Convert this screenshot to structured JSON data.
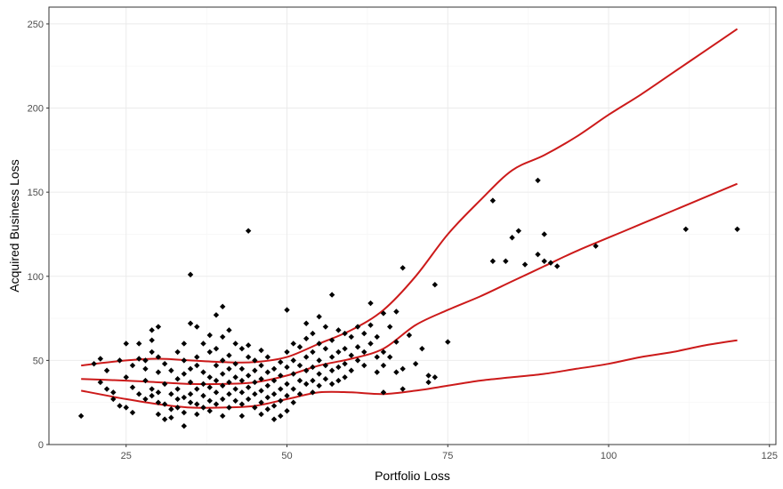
{
  "chart_data": {
    "type": "scatter",
    "title": "",
    "xlabel": "Portfolio Loss",
    "ylabel": "Acquired Business Loss",
    "xlim": [
      13,
      126
    ],
    "ylim": [
      0,
      260
    ],
    "x_ticks": [
      25,
      50,
      75,
      100,
      125
    ],
    "y_ticks": [
      0,
      50,
      100,
      150,
      200,
      250
    ],
    "grid": true,
    "point_color": "#000000",
    "curve_color": "#cc1a1a",
    "points": [
      [
        18,
        17
      ],
      [
        20,
        48
      ],
      [
        21,
        51
      ],
      [
        21,
        37
      ],
      [
        22,
        44
      ],
      [
        22,
        33
      ],
      [
        23,
        27
      ],
      [
        23,
        31
      ],
      [
        24,
        23
      ],
      [
        24,
        50
      ],
      [
        25,
        22
      ],
      [
        25,
        40
      ],
      [
        25,
        60
      ],
      [
        26,
        34
      ],
      [
        26,
        19
      ],
      [
        26,
        47
      ],
      [
        27,
        30
      ],
      [
        27,
        51
      ],
      [
        27,
        60
      ],
      [
        28,
        45
      ],
      [
        28,
        38
      ],
      [
        28,
        27
      ],
      [
        28,
        50
      ],
      [
        29,
        62
      ],
      [
        29,
        55
      ],
      [
        29,
        33
      ],
      [
        29,
        29
      ],
      [
        29,
        68
      ],
      [
        30,
        70
      ],
      [
        30,
        52
      ],
      [
        30,
        43
      ],
      [
        30,
        31
      ],
      [
        30,
        25
      ],
      [
        30,
        18
      ],
      [
        31,
        15
      ],
      [
        31,
        24
      ],
      [
        31,
        36
      ],
      [
        31,
        48
      ],
      [
        32,
        44
      ],
      [
        32,
        30
      ],
      [
        32,
        21
      ],
      [
        32,
        16
      ],
      [
        33,
        55
      ],
      [
        33,
        39
      ],
      [
        33,
        33
      ],
      [
        33,
        27
      ],
      [
        33,
        22
      ],
      [
        34,
        60
      ],
      [
        34,
        50
      ],
      [
        34,
        42
      ],
      [
        34,
        28
      ],
      [
        34,
        19
      ],
      [
        34,
        11
      ],
      [
        35,
        101
      ],
      [
        35,
        72
      ],
      [
        35,
        45
      ],
      [
        35,
        37
      ],
      [
        35,
        30
      ],
      [
        35,
        25
      ],
      [
        36,
        70
      ],
      [
        36,
        52
      ],
      [
        36,
        47
      ],
      [
        36,
        33
      ],
      [
        36,
        24
      ],
      [
        36,
        18
      ],
      [
        37,
        60
      ],
      [
        37,
        43
      ],
      [
        37,
        36
      ],
      [
        37,
        29
      ],
      [
        37,
        22
      ],
      [
        38,
        65
      ],
      [
        38,
        55
      ],
      [
        38,
        40
      ],
      [
        38,
        34
      ],
      [
        38,
        26
      ],
      [
        38,
        20
      ],
      [
        39,
        77
      ],
      [
        39,
        57
      ],
      [
        39,
        47
      ],
      [
        39,
        38
      ],
      [
        39,
        31
      ],
      [
        39,
        24
      ],
      [
        40,
        82
      ],
      [
        40,
        64
      ],
      [
        40,
        50
      ],
      [
        40,
        42
      ],
      [
        40,
        35
      ],
      [
        40,
        27
      ],
      [
        40,
        17
      ],
      [
        41,
        68
      ],
      [
        41,
        53
      ],
      [
        41,
        45
      ],
      [
        41,
        37
      ],
      [
        41,
        30
      ],
      [
        41,
        22
      ],
      [
        42,
        60
      ],
      [
        42,
        48
      ],
      [
        42,
        40
      ],
      [
        42,
        33
      ],
      [
        42,
        26
      ],
      [
        43,
        57
      ],
      [
        43,
        45
      ],
      [
        43,
        38
      ],
      [
        43,
        31
      ],
      [
        43,
        24
      ],
      [
        43,
        17
      ],
      [
        44,
        127
      ],
      [
        44,
        59
      ],
      [
        44,
        52
      ],
      [
        44,
        41
      ],
      [
        44,
        34
      ],
      [
        44,
        27
      ],
      [
        45,
        50
      ],
      [
        45,
        44
      ],
      [
        45,
        37
      ],
      [
        45,
        30
      ],
      [
        45,
        22
      ],
      [
        46,
        56
      ],
      [
        46,
        47
      ],
      [
        46,
        39
      ],
      [
        46,
        32
      ],
      [
        46,
        25
      ],
      [
        46,
        18
      ],
      [
        47,
        52
      ],
      [
        47,
        43
      ],
      [
        47,
        35
      ],
      [
        47,
        28
      ],
      [
        47,
        21
      ],
      [
        48,
        45
      ],
      [
        48,
        38
      ],
      [
        48,
        30
      ],
      [
        48,
        23
      ],
      [
        48,
        15
      ],
      [
        49,
        49
      ],
      [
        49,
        41
      ],
      [
        49,
        33
      ],
      [
        49,
        26
      ],
      [
        49,
        17
      ],
      [
        50,
        80
      ],
      [
        50,
        55
      ],
      [
        50,
        46
      ],
      [
        50,
        36
      ],
      [
        50,
        29
      ],
      [
        50,
        20
      ],
      [
        51,
        60
      ],
      [
        51,
        50
      ],
      [
        51,
        42
      ],
      [
        51,
        33
      ],
      [
        51,
        25
      ],
      [
        52,
        58
      ],
      [
        52,
        47
      ],
      [
        52,
        38
      ],
      [
        52,
        30
      ],
      [
        53,
        72
      ],
      [
        53,
        63
      ],
      [
        53,
        52
      ],
      [
        53,
        44
      ],
      [
        53,
        36
      ],
      [
        54,
        66
      ],
      [
        54,
        55
      ],
      [
        54,
        46
      ],
      [
        54,
        38
      ],
      [
        54,
        31
      ],
      [
        55,
        76
      ],
      [
        55,
        60
      ],
      [
        55,
        50
      ],
      [
        55,
        42
      ],
      [
        55,
        35
      ],
      [
        56,
        70
      ],
      [
        56,
        57
      ],
      [
        56,
        47
      ],
      [
        56,
        39
      ],
      [
        57,
        89
      ],
      [
        57,
        62
      ],
      [
        57,
        52
      ],
      [
        57,
        44
      ],
      [
        57,
        36
      ],
      [
        58,
        68
      ],
      [
        58,
        55
      ],
      [
        58,
        46
      ],
      [
        58,
        38
      ],
      [
        59,
        66
      ],
      [
        59,
        57
      ],
      [
        59,
        48
      ],
      [
        59,
        40
      ],
      [
        60,
        64
      ],
      [
        60,
        53
      ],
      [
        60,
        44
      ],
      [
        61,
        70
      ],
      [
        61,
        58
      ],
      [
        61,
        50
      ],
      [
        62,
        66
      ],
      [
        62,
        55
      ],
      [
        62,
        47
      ],
      [
        63,
        84
      ],
      [
        63,
        71
      ],
      [
        63,
        60
      ],
      [
        64,
        64
      ],
      [
        64,
        52
      ],
      [
        64,
        43
      ],
      [
        65,
        78
      ],
      [
        65,
        55
      ],
      [
        65,
        47
      ],
      [
        65,
        31
      ],
      [
        66,
        70
      ],
      [
        66,
        52
      ],
      [
        67,
        79
      ],
      [
        67,
        61
      ],
      [
        67,
        43
      ],
      [
        68,
        105
      ],
      [
        68,
        45
      ],
      [
        68,
        33
      ],
      [
        69,
        65
      ],
      [
        70,
        48
      ],
      [
        71,
        57
      ],
      [
        72,
        41
      ],
      [
        72,
        37
      ],
      [
        73,
        95
      ],
      [
        73,
        40
      ],
      [
        75,
        61
      ],
      [
        82,
        109
      ],
      [
        82,
        145
      ],
      [
        84,
        109
      ],
      [
        85,
        123
      ],
      [
        86,
        127
      ],
      [
        87,
        107
      ],
      [
        89,
        113
      ],
      [
        89,
        157
      ],
      [
        90,
        125
      ],
      [
        90,
        109
      ],
      [
        91,
        108
      ],
      [
        92,
        106
      ],
      [
        98,
        118
      ],
      [
        112,
        128
      ],
      [
        120,
        128
      ]
    ],
    "curves": [
      {
        "name": "upper",
        "points": [
          [
            18,
            47
          ],
          [
            25,
            50
          ],
          [
            30,
            51
          ],
          [
            35,
            50
          ],
          [
            40,
            49
          ],
          [
            45,
            49
          ],
          [
            50,
            52
          ],
          [
            55,
            60
          ],
          [
            60,
            68
          ],
          [
            65,
            80
          ],
          [
            70,
            100
          ],
          [
            75,
            125
          ],
          [
            80,
            145
          ],
          [
            85,
            163
          ],
          [
            90,
            172
          ],
          [
            95,
            183
          ],
          [
            100,
            196
          ],
          [
            105,
            208
          ],
          [
            110,
            221
          ],
          [
            115,
            234
          ],
          [
            120,
            247
          ]
        ]
      },
      {
        "name": "middle",
        "points": [
          [
            18,
            39
          ],
          [
            25,
            38
          ],
          [
            30,
            37
          ],
          [
            35,
            36
          ],
          [
            40,
            36
          ],
          [
            45,
            37
          ],
          [
            50,
            41
          ],
          [
            55,
            47
          ],
          [
            60,
            51
          ],
          [
            65,
            57
          ],
          [
            70,
            71
          ],
          [
            75,
            80
          ],
          [
            80,
            88
          ],
          [
            85,
            97
          ],
          [
            90,
            106
          ],
          [
            95,
            115
          ],
          [
            100,
            123
          ],
          [
            105,
            131
          ],
          [
            110,
            139
          ],
          [
            115,
            147
          ],
          [
            120,
            155
          ]
        ]
      },
      {
        "name": "lower",
        "points": [
          [
            18,
            32
          ],
          [
            25,
            27
          ],
          [
            30,
            24
          ],
          [
            35,
            22
          ],
          [
            40,
            22
          ],
          [
            45,
            23
          ],
          [
            50,
            27
          ],
          [
            55,
            31
          ],
          [
            60,
            31
          ],
          [
            65,
            30
          ],
          [
            70,
            32
          ],
          [
            75,
            35
          ],
          [
            80,
            38
          ],
          [
            85,
            40
          ],
          [
            90,
            42
          ],
          [
            95,
            45
          ],
          [
            100,
            48
          ],
          [
            105,
            52
          ],
          [
            110,
            55
          ],
          [
            115,
            59
          ],
          [
            120,
            62
          ]
        ]
      }
    ]
  }
}
